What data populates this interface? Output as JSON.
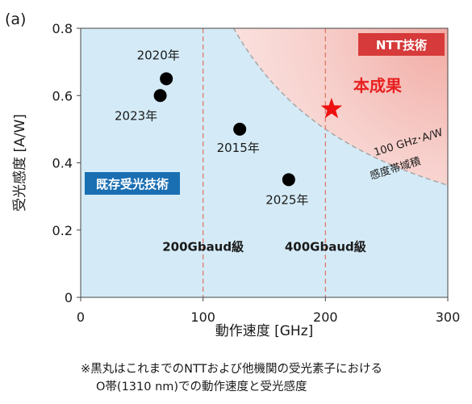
{
  "panel_label": "(a)",
  "chart_data": {
    "type": "scatter",
    "xlabel": "動作速度 [GHz]",
    "ylabel": "受光感度 [A/W]",
    "xlim": [
      0,
      300
    ],
    "ylim": [
      0,
      0.8
    ],
    "xticks": [
      0,
      100,
      200,
      300
    ],
    "yticks": [
      0,
      0.2,
      0.4,
      0.6,
      0.8
    ],
    "grid": false,
    "series": [
      {
        "name": "既存受光技術",
        "marker": "circle",
        "color": "#000000",
        "points": [
          {
            "x": 70,
            "y": 0.65,
            "label": "2020年"
          },
          {
            "x": 65,
            "y": 0.6,
            "label": "2023年"
          },
          {
            "x": 130,
            "y": 0.5,
            "label": "2015年"
          },
          {
            "x": 170,
            "y": 0.35,
            "label": "2025年"
          }
        ]
      },
      {
        "name": "本成果",
        "marker": "star",
        "color": "#ee1111",
        "points": [
          {
            "x": 205,
            "y": 0.56,
            "label": "本成果"
          }
        ]
      }
    ],
    "reference_lines": [
      {
        "x": 100,
        "label": "200Gbaud級",
        "color": "#e08070"
      },
      {
        "x": 200,
        "label": "400Gbaud級",
        "color": "#e08070"
      }
    ],
    "curve": {
      "product": 100,
      "label_line1": "100 GHz･A/W",
      "label_line2": "感度帯域積",
      "color": "#aaaaaa"
    },
    "regions": {
      "existing": {
        "label": "既存受光技術",
        "fill": "#d4ebf7",
        "badge_color": "#1a6fb3"
      },
      "ntt": {
        "label": "NTT技術",
        "fill": "#f7c9c4",
        "badge_color": "#d63a3a"
      }
    },
    "highlight_label_color": "#e82020"
  },
  "footnote": {
    "line1": "※黒丸はこれまでのNTTおよび他機関の受光素子における",
    "line2": "O帯(1310 nm)での動作速度と受光感度"
  }
}
